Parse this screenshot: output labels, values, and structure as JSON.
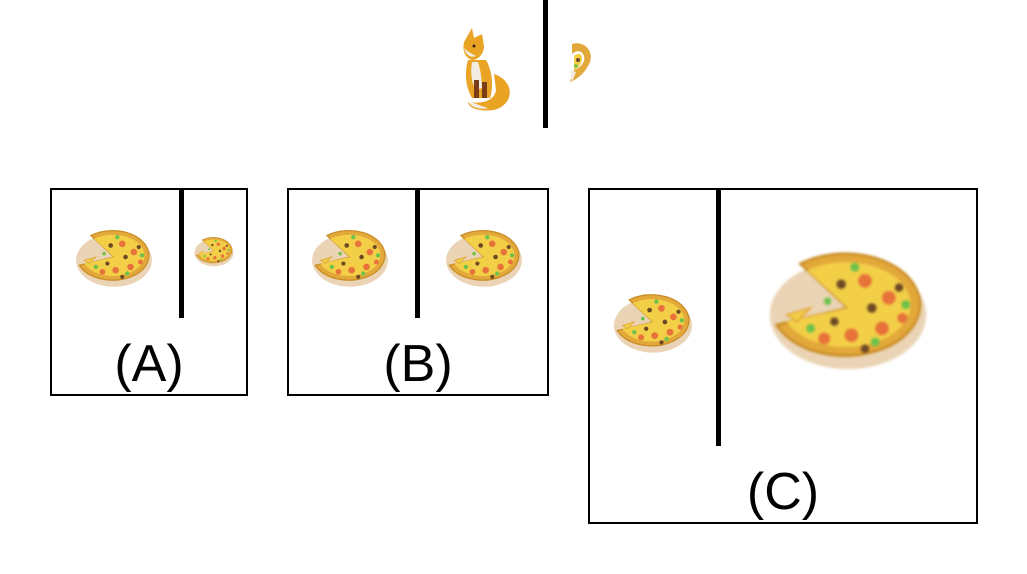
{
  "prompt": {
    "left_image": "fox-figurine-icon",
    "right_image": "pizza-fragment-icon"
  },
  "options": [
    {
      "label": "(A)",
      "left_image": "pizza-icon",
      "right_image": "pizza-icon"
    },
    {
      "label": "(B)",
      "left_image": "pizza-icon",
      "right_image": "pizza-icon"
    },
    {
      "label": "(C)",
      "left_image": "pizza-icon",
      "right_image": "pizza-icon"
    }
  ],
  "colors": {
    "crust": "#e3a83a",
    "cheese": "#f3cf47",
    "pepperoni": "#e7723a",
    "olive": "#6d4a26",
    "pepper": "#6ec24a",
    "fox_orange": "#e9a426",
    "fox_white": "#f1ece2",
    "fox_brown": "#7a3d18"
  }
}
